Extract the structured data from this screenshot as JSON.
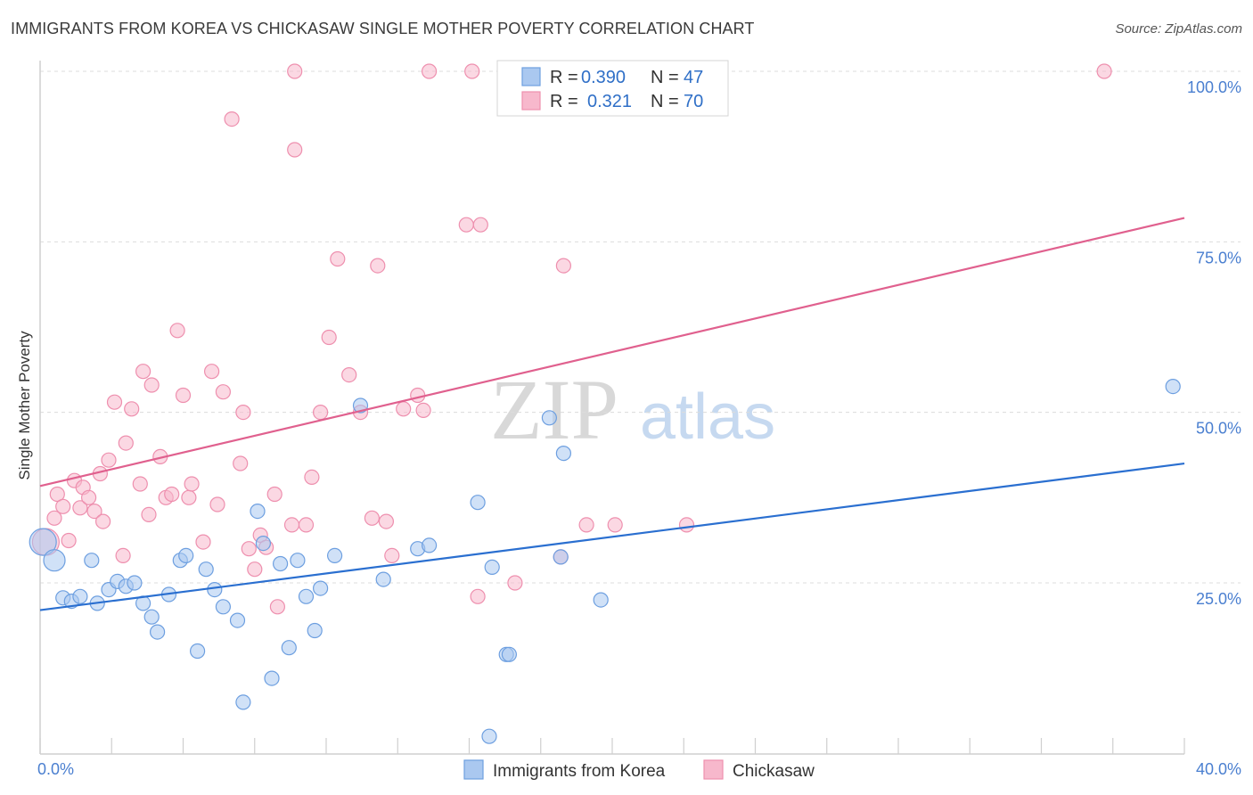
{
  "header": {
    "title": "IMMIGRANTS FROM KOREA VS CHICKASAW SINGLE MOTHER POVERTY CORRELATION CHART",
    "source": "Source: ZipAtlas.com"
  },
  "watermark": {
    "zip": "ZIP",
    "atlas": "atlas"
  },
  "legend_top": {
    "rows": [
      {
        "r_label": "R =",
        "r_value": "0.390",
        "n_label": "N =",
        "n_value": "47"
      },
      {
        "r_label": "R =",
        "r_value": "0.321",
        "n_label": "N =",
        "n_value": "70"
      }
    ]
  },
  "legend_bottom": {
    "items": [
      {
        "label": "Immigrants from Korea"
      },
      {
        "label": "Chickasaw"
      }
    ]
  },
  "chart_data": {
    "type": "scatter",
    "title": "IMMIGRANTS FROM KOREA VS CHICKASAW SINGLE MOTHER POVERTY CORRELATION CHART",
    "xlabel": "",
    "ylabel": "Single Mother Poverty",
    "xlim": [
      0,
      40
    ],
    "ylim": [
      0,
      102
    ],
    "x_tick_labels": [
      "0.0%",
      "40.0%"
    ],
    "y_tick_labels": [
      "25.0%",
      "50.0%",
      "75.0%",
      "100.0%"
    ],
    "y_ticks": [
      25,
      50,
      75,
      100
    ],
    "grid": "horizontal dashed",
    "legend_placement": "top-center and bottom",
    "colors": {
      "korea_fill": "#aac8f0",
      "korea_stroke": "#6d9fe0",
      "korea_line": "#2a6fd0",
      "chickasaw_fill": "#f7b8cc",
      "chickasaw_stroke": "#ee8fae",
      "chickasaw_line": "#e0608e",
      "tick": "#4a7fd0"
    },
    "series": [
      {
        "name": "Immigrants from Korea",
        "R": 0.39,
        "N": 47,
        "trend": {
          "x": [
            0,
            40
          ],
          "y": [
            21.0,
            42.5
          ]
        },
        "points": [
          [
            0.1,
            31.0
          ],
          [
            0.5,
            28.3
          ],
          [
            0.8,
            22.8
          ],
          [
            1.1,
            22.3
          ],
          [
            1.4,
            23.0
          ],
          [
            1.8,
            28.3
          ],
          [
            2.0,
            22.0
          ],
          [
            2.4,
            24.0
          ],
          [
            2.7,
            25.2
          ],
          [
            3.0,
            24.5
          ],
          [
            3.3,
            25.0
          ],
          [
            3.6,
            22.0
          ],
          [
            3.9,
            20.0
          ],
          [
            4.1,
            17.8
          ],
          [
            4.5,
            23.3
          ],
          [
            4.9,
            28.3
          ],
          [
            5.1,
            29.0
          ],
          [
            5.5,
            15.0
          ],
          [
            5.8,
            27.0
          ],
          [
            6.1,
            24.0
          ],
          [
            6.4,
            21.5
          ],
          [
            6.9,
            19.5
          ],
          [
            7.1,
            7.5
          ],
          [
            7.6,
            35.5
          ],
          [
            7.8,
            30.8
          ],
          [
            8.1,
            11.0
          ],
          [
            8.4,
            27.8
          ],
          [
            8.7,
            15.5
          ],
          [
            9.0,
            28.3
          ],
          [
            9.3,
            23.0
          ],
          [
            9.6,
            18.0
          ],
          [
            9.8,
            24.2
          ],
          [
            10.3,
            29.0
          ],
          [
            11.2,
            51.0
          ],
          [
            12.0,
            25.5
          ],
          [
            13.2,
            30.0
          ],
          [
            13.6,
            30.5
          ],
          [
            15.3,
            36.8
          ],
          [
            15.7,
            2.5
          ],
          [
            15.8,
            27.3
          ],
          [
            16.3,
            14.5
          ],
          [
            16.4,
            14.5
          ],
          [
            17.8,
            49.2
          ],
          [
            18.2,
            28.8
          ],
          [
            18.3,
            44.0
          ],
          [
            19.6,
            22.5
          ],
          [
            39.6,
            53.8
          ]
        ]
      },
      {
        "name": "Chickasaw",
        "R": 0.321,
        "N": 70,
        "trend": {
          "x": [
            0,
            40
          ],
          "y": [
            39.2,
            78.5
          ]
        },
        "points": [
          [
            0.2,
            31.0
          ],
          [
            0.5,
            34.5
          ],
          [
            0.6,
            38.0
          ],
          [
            0.8,
            36.2
          ],
          [
            1.0,
            31.2
          ],
          [
            1.2,
            40.0
          ],
          [
            1.4,
            36.0
          ],
          [
            1.5,
            39.0
          ],
          [
            1.7,
            37.5
          ],
          [
            1.9,
            35.5
          ],
          [
            2.1,
            41.0
          ],
          [
            2.2,
            34.0
          ],
          [
            2.4,
            43.0
          ],
          [
            2.6,
            51.5
          ],
          [
            2.9,
            29.0
          ],
          [
            3.0,
            45.5
          ],
          [
            3.2,
            50.5
          ],
          [
            3.5,
            39.5
          ],
          [
            3.6,
            56.0
          ],
          [
            3.8,
            35.0
          ],
          [
            3.9,
            54.0
          ],
          [
            4.2,
            43.5
          ],
          [
            4.4,
            37.5
          ],
          [
            4.6,
            38.0
          ],
          [
            4.8,
            62.0
          ],
          [
            5.0,
            52.5
          ],
          [
            5.2,
            37.5
          ],
          [
            5.3,
            39.5
          ],
          [
            5.7,
            31.0
          ],
          [
            6.0,
            56.0
          ],
          [
            6.2,
            36.5
          ],
          [
            6.4,
            53.0
          ],
          [
            6.7,
            93.0
          ],
          [
            7.0,
            42.5
          ],
          [
            7.1,
            50.0
          ],
          [
            7.3,
            30.0
          ],
          [
            7.5,
            27.0
          ],
          [
            7.7,
            32.0
          ],
          [
            7.9,
            30.2
          ],
          [
            8.2,
            38.0
          ],
          [
            8.3,
            21.5
          ],
          [
            8.8,
            33.5
          ],
          [
            8.9,
            88.5
          ],
          [
            9.3,
            33.5
          ],
          [
            9.5,
            40.5
          ],
          [
            9.8,
            50.0
          ],
          [
            10.1,
            61.0
          ],
          [
            10.4,
            72.5
          ],
          [
            10.8,
            55.5
          ],
          [
            11.2,
            50.0
          ],
          [
            11.6,
            34.5
          ],
          [
            11.8,
            71.5
          ],
          [
            12.1,
            34.0
          ],
          [
            12.3,
            29.0
          ],
          [
            12.7,
            50.5
          ],
          [
            13.2,
            52.5
          ],
          [
            13.4,
            50.3
          ],
          [
            13.6,
            100.0
          ],
          [
            14.9,
            77.5
          ],
          [
            15.1,
            100.0
          ],
          [
            15.3,
            23.0
          ],
          [
            15.4,
            77.5
          ],
          [
            16.6,
            25.0
          ],
          [
            18.2,
            28.8
          ],
          [
            18.3,
            71.5
          ],
          [
            19.1,
            33.5
          ],
          [
            20.1,
            33.5
          ],
          [
            22.6,
            33.5
          ],
          [
            8.9,
            100.0
          ],
          [
            37.2,
            100.0
          ]
        ]
      }
    ]
  }
}
